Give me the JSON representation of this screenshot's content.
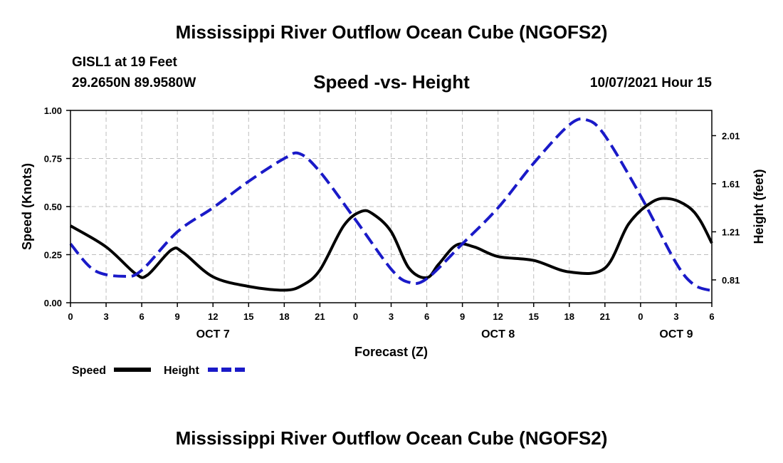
{
  "header": {
    "title": "Mississippi River Outflow Ocean Cube (NGOFS2)",
    "station": "GISL1 at 19 Feet",
    "coords": "29.2650N  89.9580W",
    "subtitle": "Speed -vs- Height",
    "datetime": "10/07/2021 Hour 15"
  },
  "footer": {
    "title": "Mississippi River Outflow Ocean Cube (NGOFS2)"
  },
  "chart_data": {
    "type": "line",
    "xlabel": "Forecast (Z)",
    "ylabel": "Speed (Knots)",
    "y2label": "Height (feet)",
    "xlim": [
      0,
      54
    ],
    "ylim": [
      0,
      1
    ],
    "y2lim": [
      0.62,
      2.22
    ],
    "grid": true,
    "x_tick_values": [
      0,
      3,
      6,
      9,
      12,
      15,
      18,
      21,
      24,
      27,
      30,
      33,
      36,
      39,
      42,
      45,
      48,
      51,
      54
    ],
    "x_tick_labels": [
      "0",
      "3",
      "6",
      "9",
      "12",
      "15",
      "18",
      "21",
      "0",
      "3",
      "6",
      "9",
      "12",
      "15",
      "18",
      "21",
      "0",
      "3",
      "6"
    ],
    "y_ticks": [
      0,
      0.25,
      0.5,
      0.75,
      1.0
    ],
    "y_tick_labels": [
      "0.00",
      "0.25",
      "0.50",
      "0.75",
      "1.00"
    ],
    "y2_ticks": [
      0.81,
      1.21,
      1.61,
      2.01
    ],
    "y2_tick_labels": [
      "0.81",
      "1.21",
      "1.61",
      "2.01"
    ],
    "day_labels": [
      {
        "x": 12,
        "label": "OCT 7"
      },
      {
        "x": 36,
        "label": "OCT 8"
      },
      {
        "x": 51,
        "label": "OCT 9"
      }
    ],
    "series": [
      {
        "name": "Speed",
        "axis": "left",
        "color": "#000000",
        "dash": "solid",
        "x": [
          0,
          3,
          5.5,
          6.5,
          8.5,
          9.5,
          12,
          15,
          18,
          19.5,
          21,
          23,
          24.5,
          25.5,
          27,
          28.5,
          30,
          31,
          32.5,
          34,
          36,
          39,
          42,
          45,
          47,
          49,
          50.5,
          52,
          53,
          54
        ],
        "values": [
          0.4,
          0.29,
          0.15,
          0.145,
          0.275,
          0.26,
          0.135,
          0.085,
          0.065,
          0.09,
          0.17,
          0.4,
          0.475,
          0.46,
          0.37,
          0.18,
          0.13,
          0.2,
          0.3,
          0.29,
          0.24,
          0.22,
          0.16,
          0.18,
          0.41,
          0.525,
          0.54,
          0.5,
          0.43,
          0.31
        ]
      },
      {
        "name": "Height",
        "axis": "right",
        "color": "#1a1ac8",
        "dash": "dashed",
        "x": [
          0,
          2,
          4.5,
          6,
          9,
          12,
          15,
          18,
          19.3,
          21,
          24,
          27,
          28.5,
          30,
          33,
          36,
          39,
          42,
          43.5,
          45,
          48,
          51,
          52.5,
          54
        ],
        "values": [
          1.11,
          0.89,
          0.84,
          0.89,
          1.21,
          1.41,
          1.63,
          1.82,
          1.86,
          1.71,
          1.31,
          0.9,
          0.79,
          0.82,
          1.11,
          1.41,
          1.78,
          2.1,
          2.14,
          2.01,
          1.51,
          0.95,
          0.77,
          0.72
        ]
      }
    ],
    "legend": {
      "placement": "bottom-left",
      "entries": [
        "Speed",
        "Height"
      ]
    }
  }
}
